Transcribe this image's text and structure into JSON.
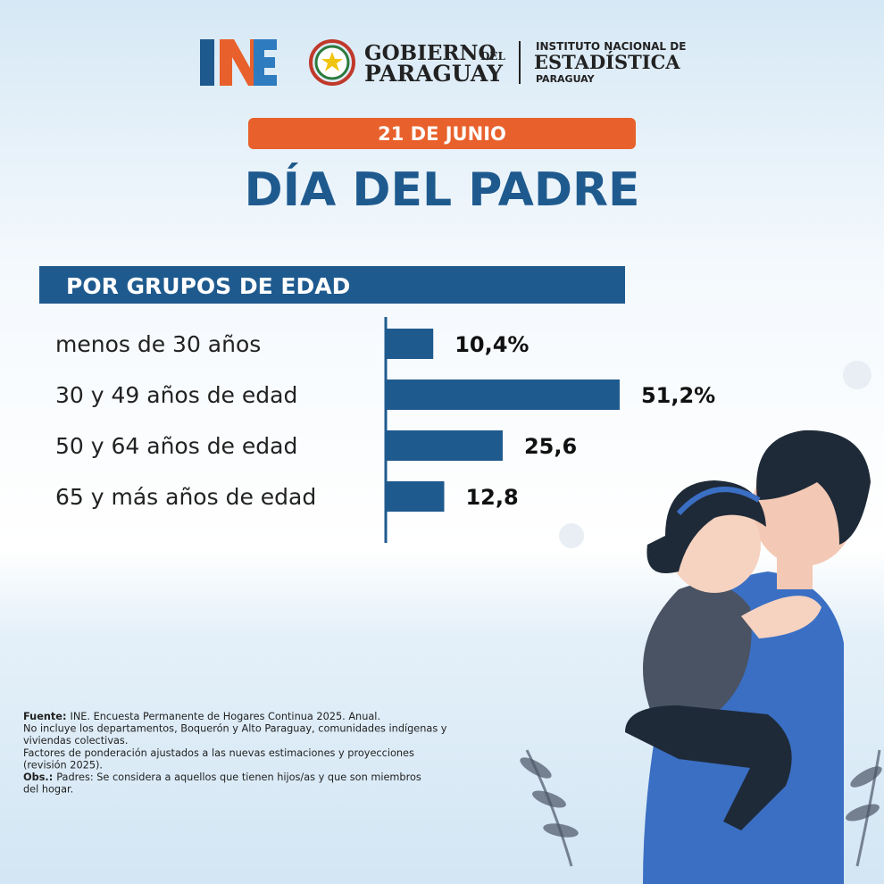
{
  "header": {
    "gov_line1": "GOBIERNO",
    "gov_del": "DEL",
    "gov_line2": "PARAGUAY",
    "inst_line1": "INSTITUTO NACIONAL DE",
    "inst_line2": "ESTADÍSTICA",
    "inst_line3": "PARAGUAY"
  },
  "date": "21 DE JUNIO",
  "chart_data": {
    "type": "bar",
    "orientation": "horizontal",
    "title": "DÍA DEL PADRE",
    "subtitle": "POR GRUPOS DE EDAD",
    "categories": [
      "menos de 30 años",
      "30 y 49 años de edad",
      "50 y 64 años de edad",
      "65 y más años de edad"
    ],
    "values": [
      10.4,
      51.2,
      25.6,
      12.8
    ],
    "value_labels": [
      "10,4%",
      "51,2%",
      "25,6",
      "12,8"
    ],
    "color": "#1f5a8e",
    "xlim": [
      0,
      60
    ]
  },
  "footnotes": [
    {
      "label": "Fuente:",
      "text": "INE. Encuesta Permanente de Hogares Continua 2025. Anual."
    },
    {
      "text": "No incluye los departamentos, Boquerón y Alto Paraguay, comunidades indígenas y"
    },
    {
      "text": "viviendas colectivas."
    },
    {
      "text": "Factores de ponderación ajustados a las nuevas estimaciones y proyecciones"
    },
    {
      "text": "(revisión 2025)."
    },
    {
      "label": "Obs.:",
      "text": "Padres: Se considera a aquellos que tienen hijos/as y que son miembros"
    },
    {
      "text": "del hogar."
    }
  ]
}
